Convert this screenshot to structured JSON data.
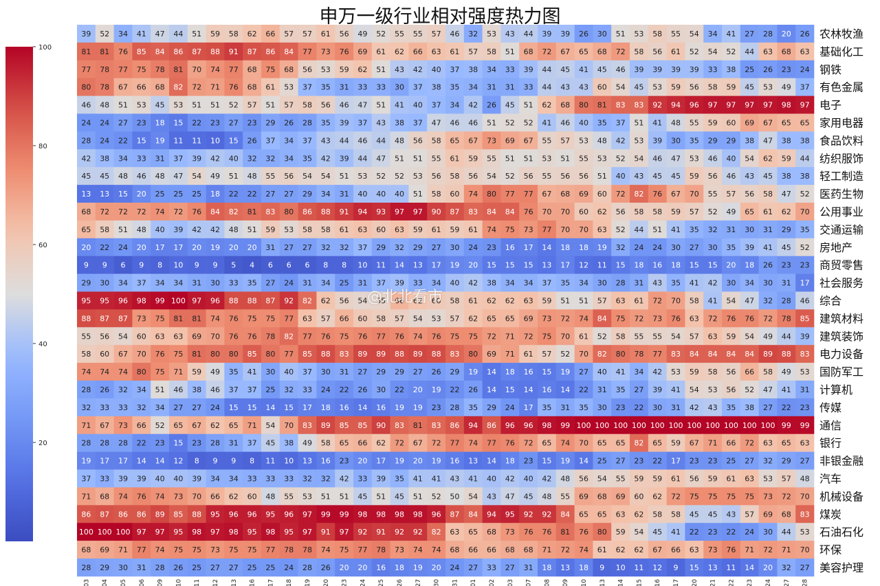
{
  "chart_data": {
    "type": "heatmap",
    "title": "申万一级行业相对强度热力图",
    "dates": [
      "03-03",
      "03-04",
      "03-05",
      "03-06",
      "03-09",
      "03-10",
      "03-11",
      "03-12",
      "03-13",
      "03-16",
      "03-17",
      "03-18",
      "03-19",
      "03-20",
      "03-23",
      "03-24",
      "03-25",
      "03-26",
      "03-27",
      "03-30",
      "03-31",
      "04-01",
      "04-02",
      "04-03",
      "04-07",
      "04-08",
      "04-09",
      "04-10",
      "04-13",
      "04-14",
      "04-15",
      "04-16",
      "04-17",
      "04-20",
      "04-21",
      "04-22",
      "04-23",
      "04-24",
      "04-27",
      "04-28"
    ],
    "industries": [
      "农林牧渔",
      "基础化工",
      "钢铁",
      "有色金属",
      "电子",
      "家用电器",
      "食品饮料",
      "纺织服饰",
      "轻工制造",
      "医药生物",
      "公用事业",
      "交通运输",
      "房地产",
      "商贸零售",
      "社会服务",
      "综合",
      "建筑材料",
      "建筑装饰",
      "电力设备",
      "国防军工",
      "计算机",
      "传媒",
      "通信",
      "银行",
      "非银金融",
      "汽车",
      "机械设备",
      "煤炭",
      "石油石化",
      "环保",
      "美容护理"
    ],
    "values": [
      [
        39,
        52,
        34,
        41,
        47,
        44,
        51,
        59,
        58,
        62,
        66,
        57,
        57,
        61,
        56,
        49,
        52,
        55,
        55,
        57,
        46,
        32,
        53,
        43,
        44,
        39,
        39,
        26,
        30,
        51,
        53,
        58,
        55,
        54,
        34,
        41,
        27,
        28,
        20,
        26
      ],
      [
        81,
        81,
        76,
        85,
        84,
        86,
        87,
        88,
        91,
        87,
        86,
        84,
        77,
        73,
        76,
        69,
        61,
        62,
        66,
        63,
        61,
        57,
        58,
        51,
        68,
        72,
        67,
        65,
        68,
        72,
        58,
        56,
        61,
        52,
        54,
        52,
        44,
        63,
        68,
        63
      ],
      [
        77,
        78,
        77,
        75,
        78,
        81,
        70,
        74,
        77,
        68,
        75,
        68,
        56,
        53,
        59,
        62,
        51,
        43,
        42,
        40,
        37,
        38,
        34,
        33,
        39,
        44,
        45,
        41,
        45,
        46,
        39,
        39,
        39,
        39,
        33,
        38,
        25,
        26,
        23,
        24
      ],
      [
        80,
        78,
        67,
        66,
        68,
        82,
        72,
        71,
        76,
        68,
        61,
        53,
        37,
        35,
        31,
        33,
        33,
        30,
        37,
        38,
        35,
        34,
        31,
        31,
        33,
        44,
        43,
        43,
        60,
        54,
        45,
        53,
        59,
        56,
        58,
        59,
        45,
        53,
        49,
        37
      ],
      [
        46,
        48,
        51,
        53,
        45,
        53,
        51,
        51,
        52,
        57,
        51,
        57,
        58,
        56,
        46,
        47,
        51,
        41,
        40,
        37,
        34,
        42,
        26,
        45,
        51,
        62,
        68,
        80,
        81,
        83,
        83,
        92,
        94,
        96,
        97,
        97,
        97,
        97,
        98,
        97
      ],
      [
        24,
        24,
        27,
        23,
        18,
        15,
        22,
        23,
        27,
        23,
        29,
        26,
        28,
        35,
        39,
        37,
        43,
        38,
        37,
        47,
        46,
        46,
        51,
        52,
        52,
        41,
        46,
        40,
        35,
        37,
        51,
        41,
        48,
        55,
        59,
        60,
        69,
        67,
        65,
        65
      ],
      [
        28,
        24,
        22,
        15,
        19,
        11,
        11,
        10,
        15,
        26,
        37,
        34,
        37,
        43,
        44,
        46,
        44,
        48,
        56,
        58,
        65,
        67,
        73,
        69,
        67,
        55,
        57,
        53,
        48,
        42,
        53,
        39,
        30,
        35,
        29,
        29,
        38,
        47,
        38,
        38
      ],
      [
        42,
        38,
        34,
        33,
        31,
        37,
        39,
        42,
        40,
        32,
        32,
        34,
        35,
        42,
        39,
        44,
        47,
        51,
        51,
        55,
        61,
        59,
        55,
        51,
        51,
        53,
        51,
        55,
        53,
        52,
        54,
        46,
        47,
        53,
        46,
        40,
        54,
        62,
        59,
        44
      ],
      [
        45,
        45,
        48,
        46,
        48,
        47,
        54,
        49,
        51,
        48,
        55,
        56,
        54,
        54,
        51,
        53,
        52,
        52,
        53,
        56,
        58,
        56,
        54,
        52,
        56,
        55,
        56,
        56,
        51,
        40,
        43,
        45,
        45,
        59,
        56,
        46,
        43,
        45,
        38,
        38
      ],
      [
        13,
        13,
        15,
        20,
        25,
        25,
        25,
        18,
        22,
        22,
        27,
        27,
        29,
        34,
        31,
        40,
        40,
        40,
        51,
        58,
        60,
        74,
        80,
        77,
        77,
        67,
        68,
        69,
        60,
        72,
        82,
        76,
        67,
        70,
        55,
        57,
        56,
        58,
        47,
        52
      ],
      [
        68,
        72,
        72,
        72,
        74,
        72,
        76,
        84,
        82,
        81,
        83,
        80,
        86,
        88,
        91,
        94,
        93,
        97,
        97,
        90,
        87,
        83,
        84,
        84,
        76,
        70,
        70,
        60,
        62,
        56,
        58,
        58,
        59,
        57,
        52,
        49,
        65,
        61,
        62,
        70
      ],
      [
        65,
        58,
        51,
        48,
        40,
        39,
        42,
        42,
        48,
        51,
        59,
        53,
        58,
        58,
        61,
        63,
        60,
        63,
        59,
        61,
        59,
        61,
        74,
        75,
        73,
        77,
        70,
        70,
        63,
        52,
        44,
        51,
        41,
        35,
        32,
        31,
        30,
        31,
        29,
        35
      ],
      [
        20,
        22,
        24,
        20,
        17,
        17,
        20,
        19,
        20,
        20,
        31,
        27,
        27,
        32,
        32,
        37,
        29,
        32,
        29,
        27,
        30,
        24,
        23,
        16,
        17,
        14,
        18,
        18,
        19,
        32,
        24,
        24,
        30,
        27,
        30,
        35,
        39,
        41,
        45,
        52
      ],
      [
        9,
        9,
        6,
        9,
        8,
        10,
        9,
        9,
        5,
        4,
        6,
        6,
        6,
        8,
        8,
        10,
        11,
        14,
        13,
        17,
        19,
        20,
        15,
        15,
        15,
        13,
        17,
        12,
        11,
        15,
        18,
        16,
        18,
        15,
        15,
        20,
        18,
        26,
        23,
        23
      ],
      [
        29,
        30,
        34,
        37,
        34,
        34,
        31,
        30,
        33,
        35,
        27,
        24,
        31,
        34,
        25,
        31,
        37,
        39,
        33,
        34,
        40,
        42,
        38,
        34,
        34,
        37,
        35,
        34,
        30,
        28,
        31,
        43,
        35,
        41,
        42,
        30,
        34,
        30,
        31,
        17
      ],
      [
        95,
        95,
        96,
        98,
        99,
        100,
        97,
        96,
        88,
        88,
        87,
        92,
        82,
        62,
        56,
        54,
        55,
        66,
        62,
        60,
        58,
        61,
        62,
        62,
        63,
        59,
        51,
        51,
        57,
        63,
        61,
        72,
        70,
        58,
        41,
        54,
        47,
        32,
        28,
        46
      ],
      [
        88,
        87,
        87,
        73,
        75,
        81,
        81,
        74,
        76,
        75,
        75,
        77,
        63,
        57,
        66,
        60,
        58,
        57,
        54,
        53,
        57,
        62,
        65,
        65,
        69,
        73,
        72,
        74,
        84,
        75,
        72,
        73,
        76,
        63,
        72,
        76,
        76,
        72,
        78,
        85
      ],
      [
        55,
        56,
        54,
        60,
        63,
        63,
        69,
        70,
        76,
        76,
        78,
        82,
        77,
        76,
        75,
        76,
        77,
        76,
        74,
        76,
        75,
        75,
        72,
        71,
        72,
        75,
        70,
        61,
        52,
        58,
        55,
        55,
        54,
        57,
        63,
        59,
        54,
        49,
        44,
        39
      ],
      [
        58,
        60,
        67,
        70,
        76,
        75,
        81,
        80,
        80,
        85,
        80,
        77,
        85,
        88,
        83,
        89,
        89,
        88,
        89,
        88,
        83,
        80,
        69,
        71,
        61,
        57,
        52,
        70,
        82,
        80,
        78,
        77,
        83,
        84,
        84,
        84,
        84,
        89,
        88,
        83
      ],
      [
        74,
        74,
        74,
        80,
        75,
        71,
        59,
        49,
        35,
        41,
        30,
        40,
        37,
        30,
        31,
        27,
        29,
        29,
        27,
        26,
        29,
        19,
        14,
        18,
        16,
        15,
        19,
        27,
        40,
        41,
        34,
        42,
        53,
        59,
        58,
        56,
        66,
        58,
        49,
        53
      ],
      [
        28,
        26,
        32,
        34,
        51,
        46,
        38,
        46,
        37,
        37,
        25,
        32,
        33,
        24,
        22,
        26,
        30,
        22,
        20,
        19,
        22,
        26,
        14,
        15,
        14,
        16,
        14,
        22,
        31,
        35,
        27,
        39,
        41,
        54,
        53,
        56,
        52,
        47,
        41,
        31
      ],
      [
        32,
        33,
        33,
        32,
        34,
        27,
        27,
        24,
        15,
        15,
        14,
        15,
        17,
        18,
        16,
        14,
        16,
        19,
        19,
        23,
        28,
        35,
        29,
        24,
        17,
        35,
        31,
        35,
        30,
        23,
        22,
        30,
        31,
        42,
        43,
        35,
        38,
        27,
        22,
        23
      ],
      [
        71,
        67,
        73,
        66,
        52,
        65,
        67,
        62,
        65,
        71,
        54,
        70,
        83,
        89,
        85,
        85,
        90,
        83,
        81,
        83,
        86,
        94,
        86,
        96,
        96,
        98,
        99,
        100,
        100,
        100,
        100,
        100,
        100,
        100,
        100,
        100,
        100,
        100,
        99,
        99
      ],
      [
        28,
        28,
        28,
        22,
        23,
        15,
        23,
        28,
        31,
        37,
        45,
        38,
        49,
        58,
        65,
        66,
        62,
        72,
        67,
        72,
        77,
        74,
        77,
        76,
        72,
        65,
        74,
        70,
        65,
        65,
        82,
        65,
        59,
        67,
        71,
        66,
        72,
        63,
        65,
        63
      ],
      [
        19,
        17,
        17,
        14,
        14,
        12,
        8,
        9,
        9,
        8,
        11,
        10,
        13,
        16,
        23,
        20,
        17,
        19,
        20,
        19,
        16,
        13,
        14,
        18,
        23,
        15,
        19,
        14,
        25,
        27,
        23,
        22,
        17,
        23,
        23,
        25,
        27,
        32,
        29,
        27
      ],
      [
        37,
        33,
        39,
        39,
        40,
        40,
        39,
        34,
        34,
        33,
        33,
        33,
        32,
        32,
        42,
        33,
        39,
        35,
        41,
        41,
        43,
        41,
        40,
        42,
        40,
        42,
        48,
        56,
        54,
        55,
        59,
        59,
        61,
        56,
        59,
        61,
        63,
        53,
        57,
        48
      ],
      [
        71,
        68,
        74,
        76,
        74,
        73,
        70,
        66,
        62,
        60,
        48,
        55,
        53,
        51,
        51,
        45,
        51,
        45,
        51,
        52,
        50,
        54,
        43,
        47,
        45,
        48,
        55,
        69,
        68,
        69,
        60,
        62,
        72,
        75,
        75,
        75,
        75,
        73,
        72,
        70
      ],
      [
        86,
        87,
        86,
        86,
        89,
        85,
        88,
        95,
        96,
        96,
        95,
        96,
        97,
        99,
        99,
        98,
        98,
        98,
        98,
        96,
        87,
        84,
        94,
        95,
        92,
        92,
        84,
        65,
        65,
        63,
        62,
        58,
        58,
        45,
        45,
        43,
        57,
        69,
        68,
        83
      ],
      [
        100,
        100,
        100,
        97,
        97,
        95,
        98,
        97,
        98,
        95,
        98,
        95,
        97,
        91,
        97,
        92,
        91,
        92,
        92,
        82,
        63,
        65,
        68,
        73,
        76,
        76,
        81,
        76,
        80,
        59,
        54,
        45,
        41,
        22,
        23,
        22,
        24,
        30,
        44,
        53
      ],
      [
        68,
        69,
        71,
        77,
        74,
        75,
        75,
        73,
        75,
        75,
        77,
        78,
        78,
        74,
        75,
        77,
        78,
        73,
        74,
        74,
        68,
        66,
        66,
        68,
        68,
        71,
        72,
        74,
        61,
        62,
        62,
        67,
        66,
        63,
        73,
        76,
        71,
        72,
        71,
        70
      ],
      [
        28,
        29,
        30,
        31,
        28,
        26,
        25,
        27,
        27,
        25,
        25,
        24,
        28,
        26,
        20,
        20,
        16,
        18,
        19,
        20,
        24,
        27,
        33,
        27,
        31,
        18,
        13,
        18,
        9,
        10,
        11,
        12,
        9,
        15,
        13,
        11,
        14,
        20,
        32,
        27
      ]
    ],
    "colorbar": {
      "min": 0,
      "max": 100,
      "ticks": [
        20,
        40,
        60,
        80,
        100
      ],
      "colormap": "coolwarm"
    }
  },
  "watermark": "@北北看市"
}
